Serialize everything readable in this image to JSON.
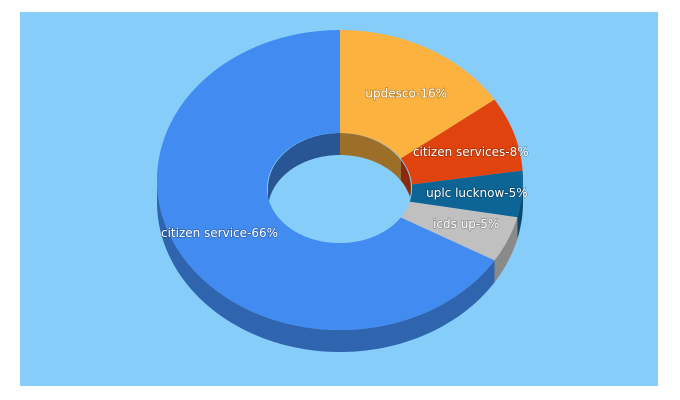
{
  "chart_data": {
    "type": "donut3d",
    "categories": [
      "updesco",
      "citizen services",
      "uplc lucknow",
      "icds up",
      "citizen service"
    ],
    "values": [
      16,
      8,
      5,
      5,
      66
    ],
    "value_labels": [
      "updesco-16%",
      "citizen services-8%",
      "uplc lucknow-5%",
      "icds up-5%",
      "citizen service-66%"
    ],
    "colors": [
      "#fbb23f",
      "#e0430d",
      "#0d6596",
      "#c0c0c0",
      "#418bf1"
    ]
  }
}
